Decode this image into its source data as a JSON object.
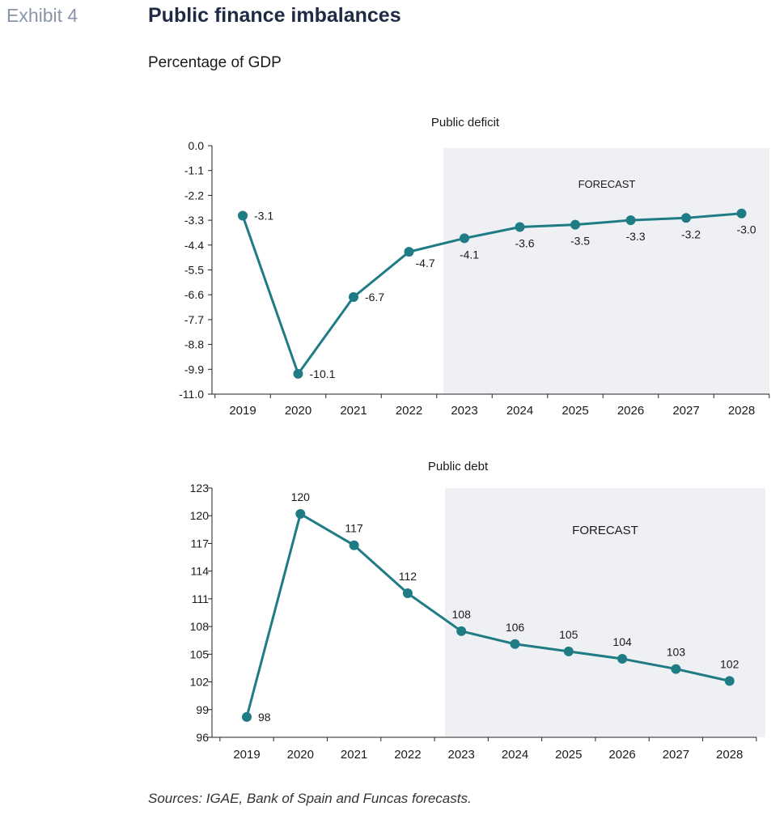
{
  "header": {
    "exhibit": "Exhibit 4",
    "title": "Public finance imbalances",
    "subtitle": "Percentage of GDP"
  },
  "footer": {
    "source": "Sources: IGAE, Bank of Spain and Funcas forecasts."
  },
  "colors": {
    "line": "#1f7b84",
    "forecast_shade": "#eef0f3",
    "axis": "#222222"
  },
  "chart_data": [
    {
      "type": "line",
      "title": "Public deficit",
      "shaded_label": "FORECAST",
      "shaded_from": "2023",
      "categories": [
        "2019",
        "2020",
        "2021",
        "2022",
        "2023",
        "2024",
        "2025",
        "2026",
        "2027",
        "2028"
      ],
      "values": [
        -3.1,
        -10.1,
        -6.7,
        -4.7,
        -4.1,
        -3.6,
        -3.5,
        -3.3,
        -3.2,
        -3.0
      ],
      "labels": [
        "-3.1",
        "-10.1",
        "-6.7",
        "-4.7",
        "-4.1",
        "-3.6",
        "-3.5",
        "-3.3",
        "-3.2",
        "-3.0"
      ],
      "yticks": [
        "0.0",
        "-1.1",
        "-2.2",
        "-3.3",
        "-4.4",
        "-5.5",
        "-6.6",
        "-7.7",
        "-8.8",
        "-9.9",
        "-11.0"
      ],
      "ylim": [
        -11.0,
        0.0
      ],
      "grid": false
    },
    {
      "type": "line",
      "title": "Public debt",
      "shaded_label": "FORECAST",
      "shaded_from": "2023",
      "categories": [
        "2019",
        "2020",
        "2021",
        "2022",
        "2023",
        "2024",
        "2025",
        "2026",
        "2027",
        "2028"
      ],
      "values": [
        98.2,
        120.2,
        116.8,
        111.6,
        107.5,
        106.1,
        105.3,
        104.5,
        103.4,
        102.1
      ],
      "labels": [
        "98",
        "120",
        "117",
        "112",
        "108",
        "106",
        "105",
        "104",
        "103",
        "102"
      ],
      "yticks": [
        "123",
        "120",
        "117",
        "114",
        "111",
        "108",
        "105",
        "102",
        "99",
        "96"
      ],
      "ylim": [
        96,
        123
      ],
      "grid": false
    }
  ]
}
